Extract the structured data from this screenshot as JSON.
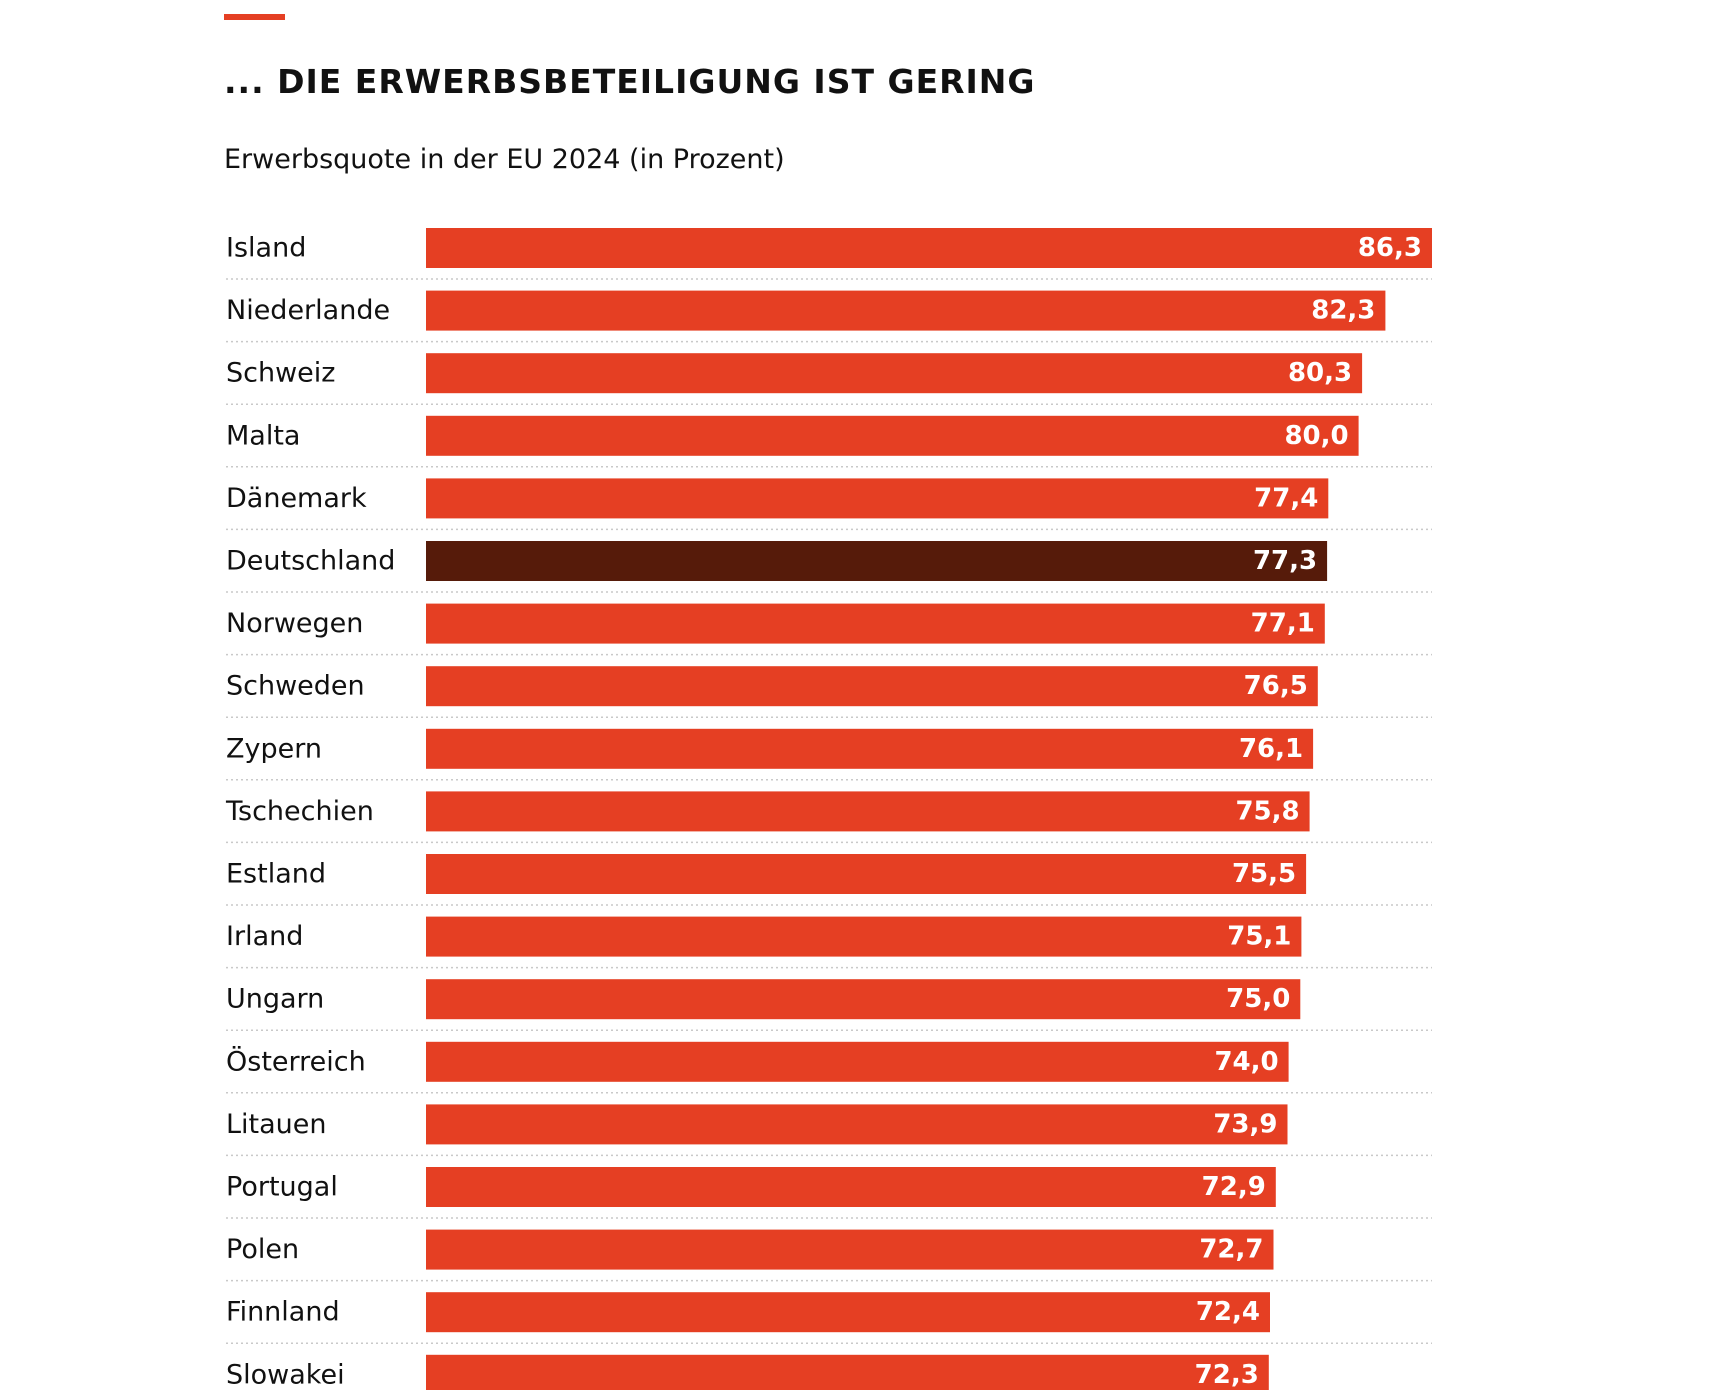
{
  "header": {
    "title": "... DIE ERWERBSBETEILIGUNG IST GERING",
    "subtitle": "Erwerbsquote in der EU 2024 (in Prozent)"
  },
  "colors": {
    "accent": "#e53f23",
    "bar": "#e53f23",
    "highlight_bar": "#561b0a",
    "value_text": "#ffffff"
  },
  "chart_data": {
    "type": "bar",
    "orientation": "horizontal",
    "title": "... DIE ERWERBSBETEILIGUNG IST GERING",
    "subtitle": "Erwerbsquote in der EU 2024 (in Prozent)",
    "categories": [
      "Island",
      "Niederlande",
      "Schweiz",
      "Malta",
      "Dänemark",
      "Deutschland",
      "Norwegen",
      "Schweden",
      "Zypern",
      "Tschechien",
      "Estland",
      "Irland",
      "Ungarn",
      "Österreich",
      "Litauen",
      "Portugal",
      "Polen",
      "Finnland",
      "Slowakei"
    ],
    "values": [
      86.3,
      82.3,
      80.3,
      80.0,
      77.4,
      77.3,
      77.1,
      76.5,
      76.1,
      75.8,
      75.5,
      75.1,
      75.0,
      74.0,
      73.9,
      72.9,
      72.7,
      72.4,
      72.3
    ],
    "value_labels": [
      "86,3",
      "82,3",
      "80,3",
      "80,0",
      "77,4",
      "77,3",
      "77,1",
      "76,5",
      "76,1",
      "75,8",
      "75,5",
      "75,1",
      "75,0",
      "74,0",
      "73,9",
      "72,9",
      "72,7",
      "72,4",
      "72,3"
    ],
    "highlight": "Deutschland",
    "xlim": [
      0,
      86.3
    ],
    "grid": false,
    "legend": "none"
  }
}
